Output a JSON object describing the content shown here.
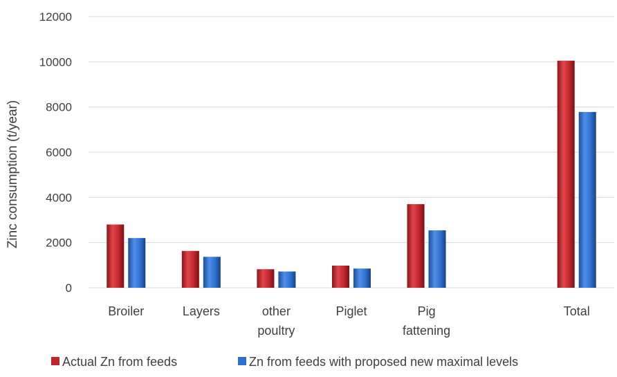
{
  "chart_data": {
    "type": "bar",
    "categories": [
      [
        "Broiler"
      ],
      [
        "Layers"
      ],
      [
        "other",
        "poultry"
      ],
      [
        "Piglet"
      ],
      [
        "Pig",
        "fattening"
      ],
      [],
      [
        "Total"
      ]
    ],
    "series": [
      {
        "name": "Actual Zn from feeds",
        "color": "#c0262d",
        "values": [
          2800,
          1630,
          820,
          980,
          3700,
          null,
          10050
        ]
      },
      {
        "name": "Zn from feeds with proposed new maximal levels",
        "color": "#2f6fd0",
        "values": [
          2200,
          1370,
          720,
          850,
          2540,
          null,
          7780
        ]
      }
    ],
    "title": "",
    "xlabel": "",
    "ylabel": "Zinc consumption (t/year)",
    "ylim": [
      0,
      12000
    ],
    "yticks": [
      0,
      2000,
      4000,
      6000,
      8000,
      10000,
      12000
    ],
    "grid": true,
    "legend_position": "bottom"
  }
}
